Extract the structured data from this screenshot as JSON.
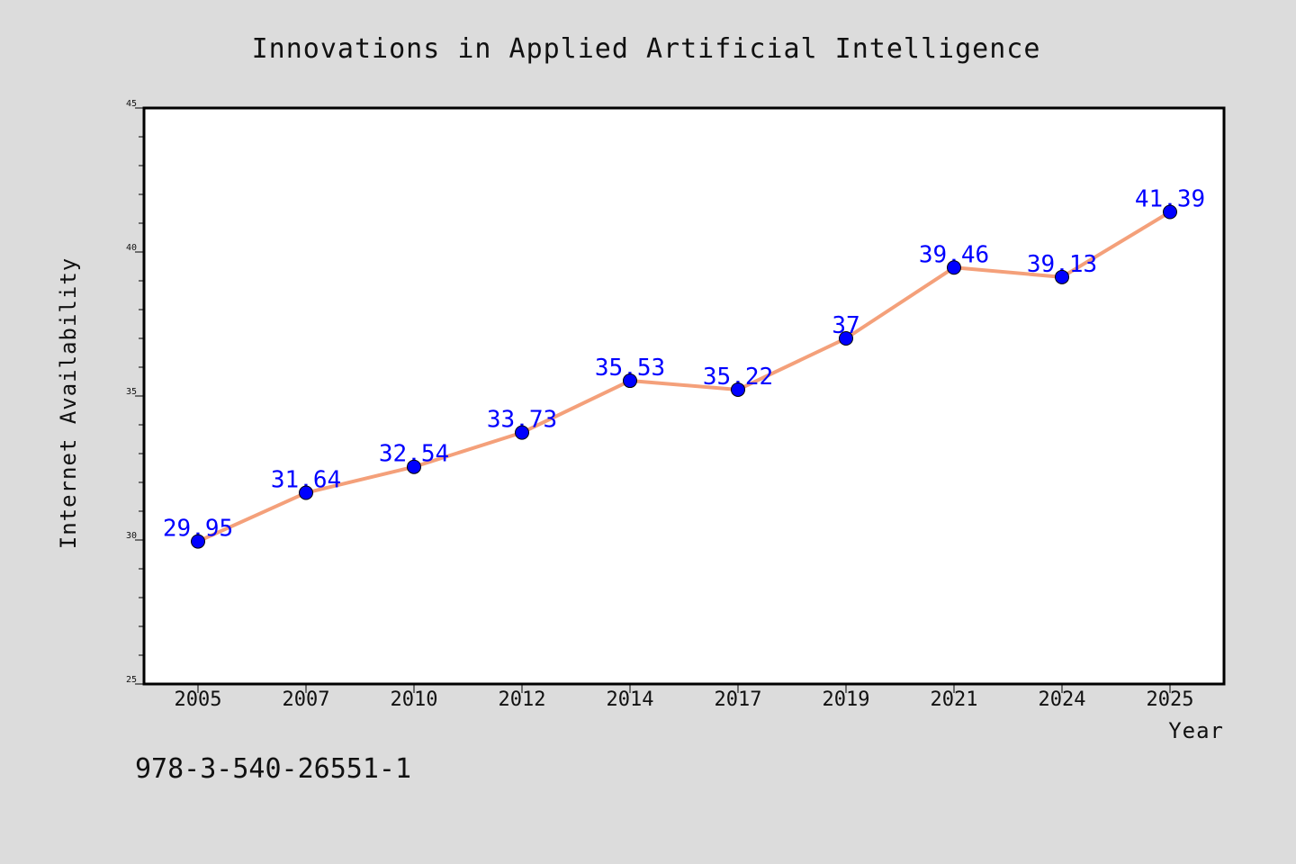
{
  "chart_data": {
    "type": "line",
    "title": "Innovations in Applied Artificial Intelligence",
    "xlabel": "Year",
    "ylabel": "Internet Availability",
    "categories": [
      "2005",
      "2007",
      "2010",
      "2012",
      "2014",
      "2017",
      "2019",
      "2021",
      "2024",
      "2025"
    ],
    "series": [
      {
        "values": [
          29.95,
          31.64,
          32.54,
          33.73,
          35.53,
          35.22,
          37,
          39.46,
          39.13,
          41.39
        ],
        "labels": [
          "29.95",
          "31.64",
          "32.54",
          "33.73",
          "35.53",
          "35.22",
          "37",
          "39.46",
          "39.13",
          "41.39"
        ],
        "line_color": "#f4a07a",
        "marker_color": "#0000ff"
      }
    ],
    "ylim": [
      25,
      45
    ],
    "yticks": [
      "25",
      "30",
      "35",
      "40",
      "45"
    ],
    "grid": false,
    "legend": "none"
  },
  "footer_text": "978-3-540-26551-1",
  "colors": {
    "background": "#dcdcdc",
    "plot_background": "#ffffff",
    "label_color": "#0000ff"
  }
}
